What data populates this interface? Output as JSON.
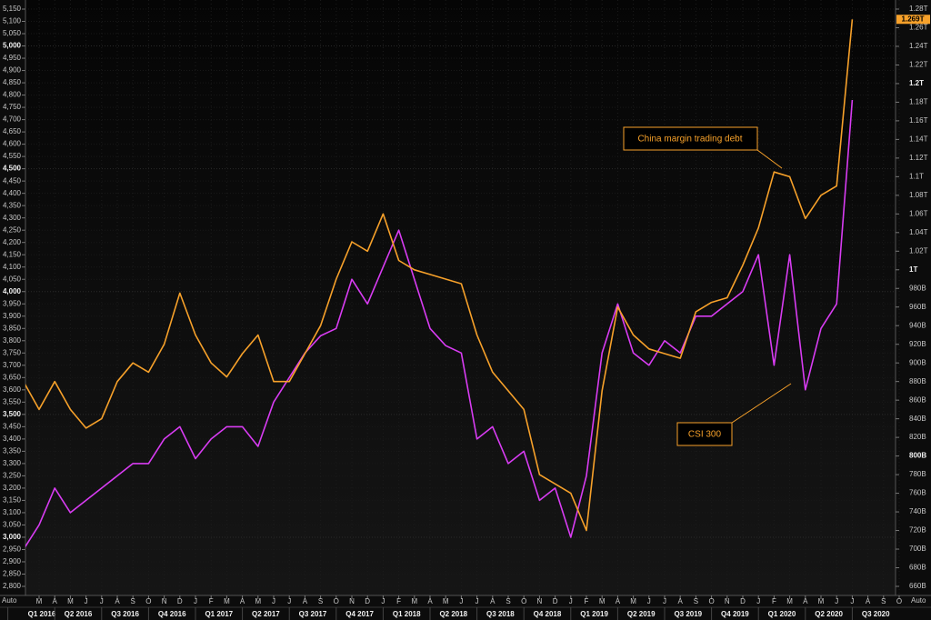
{
  "chart_data": {
    "type": "line",
    "x": [
      "2016-02",
      "2016-03",
      "2016-04",
      "2016-05",
      "2016-06",
      "2016-07",
      "2016-08",
      "2016-09",
      "2016-10",
      "2016-11",
      "2016-12",
      "2017-01",
      "2017-02",
      "2017-03",
      "2017-04",
      "2017-05",
      "2017-06",
      "2017-07",
      "2017-08",
      "2017-09",
      "2017-10",
      "2017-11",
      "2017-12",
      "2018-01",
      "2018-02",
      "2018-03",
      "2018-04",
      "2018-05",
      "2018-06",
      "2018-07",
      "2018-08",
      "2018-09",
      "2018-10",
      "2018-11",
      "2018-12",
      "2019-01",
      "2019-02",
      "2019-03",
      "2019-04",
      "2019-05",
      "2019-06",
      "2019-07",
      "2019-08",
      "2019-09",
      "2019-10",
      "2019-11",
      "2019-12",
      "2020-01",
      "2020-02",
      "2020-03",
      "2020-04",
      "2020-05",
      "2020-06",
      "2020-07"
    ],
    "series": [
      {
        "name": "CSI 300",
        "color": "#d83cf2",
        "axis": "y",
        "values": [
          2950,
          3050,
          3200,
          3100,
          3150,
          3200,
          3250,
          3300,
          3300,
          3400,
          3450,
          3320,
          3400,
          3450,
          3450,
          3370,
          3550,
          3650,
          3750,
          3820,
          3850,
          4050,
          3950,
          4100,
          4250,
          4050,
          3850,
          3780,
          3750,
          3400,
          3450,
          3300,
          3350,
          3150,
          3200,
          3000,
          3250,
          3750,
          3950,
          3750,
          3700,
          3800,
          3750,
          3900,
          3900,
          3950,
          4000,
          4150,
          3700,
          4150,
          3600,
          3850,
          3950,
          4780
        ]
      },
      {
        "name": "China margin trading debt",
        "color": "#f7a12a",
        "axis": "y2",
        "values": [
          880,
          850,
          880,
          850,
          830,
          840,
          880,
          900,
          890,
          920,
          975,
          930,
          900,
          885,
          910,
          930,
          880,
          880,
          910,
          940,
          990,
          1030,
          1020,
          1060,
          1010,
          1000,
          995,
          990,
          985,
          930,
          890,
          870,
          850,
          780,
          770,
          760,
          720,
          870,
          960,
          930,
          915,
          910,
          905,
          955,
          965,
          970,
          1005,
          1045,
          1105,
          1100,
          1055,
          1080,
          1090,
          1269
        ]
      }
    ],
    "xlim": [
      "2016-01",
      "2020-10"
    ],
    "xticks": [
      {
        "value": "2016-03",
        "label": "M"
      },
      {
        "value": "2016-04",
        "label": "A"
      },
      {
        "value": "2016-05",
        "label": "M"
      },
      {
        "value": "2016-06",
        "label": "J"
      },
      {
        "value": "2016-07",
        "label": "J"
      },
      {
        "value": "2016-08",
        "label": "A"
      },
      {
        "value": "2016-09",
        "label": "S"
      },
      {
        "value": "2016-10",
        "label": "O"
      },
      {
        "value": "2016-11",
        "label": "N"
      },
      {
        "value": "2016-12",
        "label": "D"
      },
      {
        "value": "2017-01",
        "label": "J"
      },
      {
        "value": "2017-02",
        "label": "F"
      },
      {
        "value": "2017-03",
        "label": "M"
      },
      {
        "value": "2017-04",
        "label": "A"
      },
      {
        "value": "2017-05",
        "label": "M"
      },
      {
        "value": "2017-06",
        "label": "J"
      },
      {
        "value": "2017-07",
        "label": "J"
      },
      {
        "value": "2017-08",
        "label": "A"
      },
      {
        "value": "2017-09",
        "label": "S"
      },
      {
        "value": "2017-10",
        "label": "O"
      },
      {
        "value": "2017-11",
        "label": "N"
      },
      {
        "value": "2017-12",
        "label": "D"
      },
      {
        "value": "2018-01",
        "label": "J"
      },
      {
        "value": "2018-02",
        "label": "F"
      },
      {
        "value": "2018-03",
        "label": "M"
      },
      {
        "value": "2018-04",
        "label": "A"
      },
      {
        "value": "2018-05",
        "label": "M"
      },
      {
        "value": "2018-06",
        "label": "J"
      },
      {
        "value": "2018-07",
        "label": "J"
      },
      {
        "value": "2018-08",
        "label": "A"
      },
      {
        "value": "2018-09",
        "label": "S"
      },
      {
        "value": "2018-10",
        "label": "O"
      },
      {
        "value": "2018-11",
        "label": "N"
      },
      {
        "value": "2018-12",
        "label": "D"
      },
      {
        "value": "2019-01",
        "label": "J"
      },
      {
        "value": "2019-02",
        "label": "F"
      },
      {
        "value": "2019-03",
        "label": "M"
      },
      {
        "value": "2019-04",
        "label": "A"
      },
      {
        "value": "2019-05",
        "label": "M"
      },
      {
        "value": "2019-06",
        "label": "J"
      },
      {
        "value": "2019-07",
        "label": "J"
      },
      {
        "value": "2019-08",
        "label": "A"
      },
      {
        "value": "2019-09",
        "label": "S"
      },
      {
        "value": "2019-10",
        "label": "O"
      },
      {
        "value": "2019-11",
        "label": "N"
      },
      {
        "value": "2019-12",
        "label": "D"
      },
      {
        "value": "2020-01",
        "label": "J"
      },
      {
        "value": "2020-02",
        "label": "F"
      },
      {
        "value": "2020-03",
        "label": "M"
      },
      {
        "value": "2020-04",
        "label": "A"
      },
      {
        "value": "2020-05",
        "label": "M"
      },
      {
        "value": "2020-06",
        "label": "J"
      },
      {
        "value": "2020-07",
        "label": "J"
      },
      {
        "value": "2020-08",
        "label": "A"
      },
      {
        "value": "2020-09",
        "label": "S"
      },
      {
        "value": "2020-10",
        "label": "O"
      }
    ],
    "quarter_labels": [
      {
        "value": "2016-01",
        "label": "Q1 2016"
      },
      {
        "value": "2016-04",
        "label": "Q2 2016"
      },
      {
        "value": "2016-07",
        "label": "Q3 2016"
      },
      {
        "value": "2016-10",
        "label": "Q4 2016"
      },
      {
        "value": "2017-01",
        "label": "Q1 2017"
      },
      {
        "value": "2017-04",
        "label": "Q2 2017"
      },
      {
        "value": "2017-07",
        "label": "Q3 2017"
      },
      {
        "value": "2017-10",
        "label": "Q4 2017"
      },
      {
        "value": "2018-01",
        "label": "Q1 2018"
      },
      {
        "value": "2018-04",
        "label": "Q2 2018"
      },
      {
        "value": "2018-07",
        "label": "Q3 2018"
      },
      {
        "value": "2018-10",
        "label": "Q4 2018"
      },
      {
        "value": "2019-01",
        "label": "Q1 2019"
      },
      {
        "value": "2019-04",
        "label": "Q2 2019"
      },
      {
        "value": "2019-07",
        "label": "Q3 2019"
      },
      {
        "value": "2019-10",
        "label": "Q4 2019"
      },
      {
        "value": "2020-01",
        "label": "Q1 2020"
      },
      {
        "value": "2020-04",
        "label": "Q2 2020"
      },
      {
        "value": "2020-07",
        "label": "Q3 2020"
      }
    ],
    "ylim": [
      2800,
      5150
    ],
    "yticks": [
      {
        "value": 2800,
        "label": "2,800"
      },
      {
        "value": 2850,
        "label": "2,850"
      },
      {
        "value": 2900,
        "label": "2,900"
      },
      {
        "value": 2950,
        "label": "2,950"
      },
      {
        "value": 3000,
        "label": "3,000"
      },
      {
        "value": 3050,
        "label": "3,050"
      },
      {
        "value": 3100,
        "label": "3,100"
      },
      {
        "value": 3150,
        "label": "3,150"
      },
      {
        "value": 3200,
        "label": "3,200"
      },
      {
        "value": 3250,
        "label": "3,250"
      },
      {
        "value": 3300,
        "label": "3,300"
      },
      {
        "value": 3350,
        "label": "3,350"
      },
      {
        "value": 3400,
        "label": "3,400"
      },
      {
        "value": 3450,
        "label": "3,450"
      },
      {
        "value": 3500,
        "label": "3,500"
      },
      {
        "value": 3550,
        "label": "3,550"
      },
      {
        "value": 3600,
        "label": "3,600"
      },
      {
        "value": 3650,
        "label": "3,650"
      },
      {
        "value": 3700,
        "label": "3,700"
      },
      {
        "value": 3750,
        "label": "3,750"
      },
      {
        "value": 3800,
        "label": "3,800"
      },
      {
        "value": 3850,
        "label": "3,850"
      },
      {
        "value": 3900,
        "label": "3,900"
      },
      {
        "value": 3950,
        "label": "3,950"
      },
      {
        "value": 4000,
        "label": "4,000"
      },
      {
        "value": 4050,
        "label": "4,050"
      },
      {
        "value": 4100,
        "label": "4,100"
      },
      {
        "value": 4150,
        "label": "4,150"
      },
      {
        "value": 4200,
        "label": "4,200"
      },
      {
        "value": 4250,
        "label": "4,250"
      },
      {
        "value": 4300,
        "label": "4,300"
      },
      {
        "value": 4350,
        "label": "4,350"
      },
      {
        "value": 4400,
        "label": "4,400"
      },
      {
        "value": 4450,
        "label": "4,450"
      },
      {
        "value": 4500,
        "label": "4,500"
      },
      {
        "value": 4550,
        "label": "4,550"
      },
      {
        "value": 4600,
        "label": "4,600"
      },
      {
        "value": 4650,
        "label": "4,650"
      },
      {
        "value": 4700,
        "label": "4,700"
      },
      {
        "value": 4750,
        "label": "4,750"
      },
      {
        "value": 4800,
        "label": "4,800"
      },
      {
        "value": 4850,
        "label": "4,850"
      },
      {
        "value": 4900,
        "label": "4,900"
      },
      {
        "value": 4950,
        "label": "4,950"
      },
      {
        "value": 5000,
        "label": "5,000"
      },
      {
        "value": 5050,
        "label": "5,050"
      },
      {
        "value": 5100,
        "label": "5,100"
      },
      {
        "value": 5150,
        "label": "5,150"
      }
    ],
    "y2lim": [
      660,
      1280
    ],
    "y2ticks": [
      {
        "value": 660,
        "label": "660B"
      },
      {
        "value": 680,
        "label": "680B"
      },
      {
        "value": 700,
        "label": "700B"
      },
      {
        "value": 720,
        "label": "720B"
      },
      {
        "value": 740,
        "label": "740B"
      },
      {
        "value": 760,
        "label": "760B"
      },
      {
        "value": 780,
        "label": "780B"
      },
      {
        "value": 800,
        "label": "800B"
      },
      {
        "value": 820,
        "label": "820B"
      },
      {
        "value": 840,
        "label": "840B"
      },
      {
        "value": 860,
        "label": "860B"
      },
      {
        "value": 880,
        "label": "880B"
      },
      {
        "value": 900,
        "label": "900B"
      },
      {
        "value": 920,
        "label": "920B"
      },
      {
        "value": 940,
        "label": "940B"
      },
      {
        "value": 960,
        "label": "960B"
      },
      {
        "value": 980,
        "label": "980B"
      },
      {
        "value": 1000,
        "label": "1T"
      },
      {
        "value": 1020,
        "label": "1.02T"
      },
      {
        "value": 1040,
        "label": "1.04T"
      },
      {
        "value": 1060,
        "label": "1.06T"
      },
      {
        "value": 1080,
        "label": "1.08T"
      },
      {
        "value": 1100,
        "label": "1.1T"
      },
      {
        "value": 1120,
        "label": "1.12T"
      },
      {
        "value": 1140,
        "label": "1.14T"
      },
      {
        "value": 1160,
        "label": "1.16T"
      },
      {
        "value": 1180,
        "label": "1.18T"
      },
      {
        "value": 1200,
        "label": "1.2T"
      },
      {
        "value": 1220,
        "label": "1.22T"
      },
      {
        "value": 1240,
        "label": "1.24T"
      },
      {
        "value": 1260,
        "label": "1.26T"
      },
      {
        "value": 1280,
        "label": "1.28T"
      }
    ],
    "current_value_tag": {
      "value": 1269,
      "label": "1.269T"
    },
    "annotations": [
      {
        "text": "China margin trading debt"
      },
      {
        "text": "CSI 300"
      }
    ],
    "corner_labels": [
      "Auto",
      "Auto"
    ],
    "grid": true
  }
}
